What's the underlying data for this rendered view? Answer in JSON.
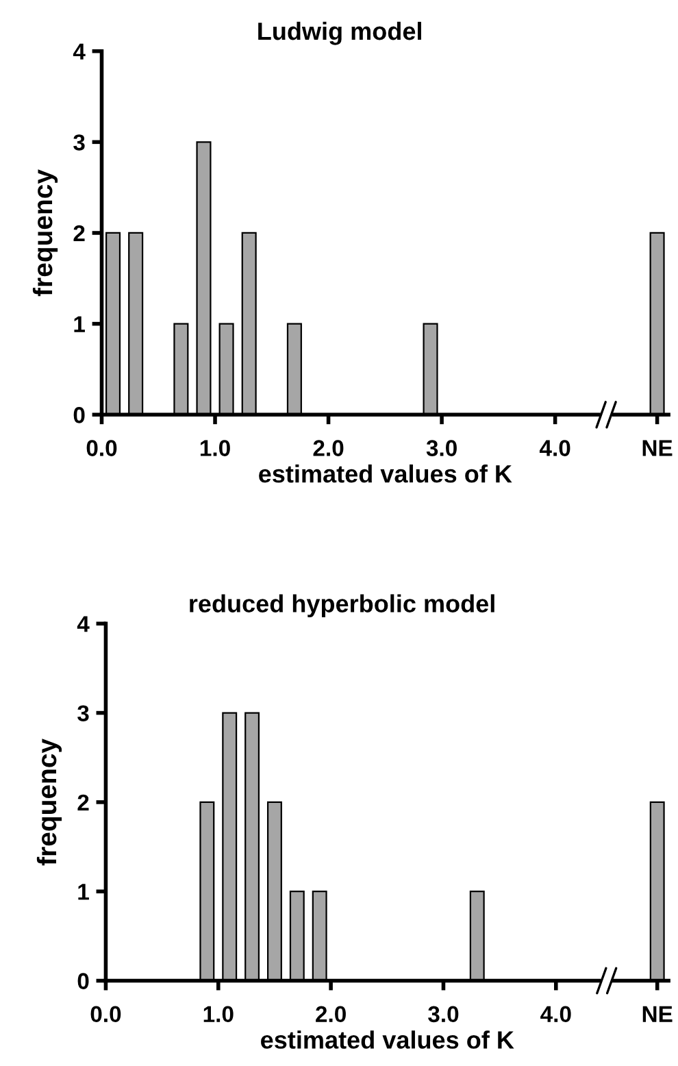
{
  "chart_data": [
    {
      "type": "bar",
      "title": "Ludwig model",
      "xlabel": "estimated values of K",
      "ylabel": "frequency",
      "color": "#a6a6a6",
      "x": [
        0.1,
        0.3,
        0.7,
        0.9,
        1.1,
        1.3,
        1.7,
        2.9,
        4.9
      ],
      "values": [
        2,
        2,
        1,
        3,
        1,
        2,
        1,
        1,
        2
      ],
      "xlim": [
        0,
        5.0
      ],
      "xticks": [
        {
          "value": 0,
          "label": "0.0"
        },
        {
          "value": 1,
          "label": "1.0"
        },
        {
          "value": 2,
          "label": "2.0"
        },
        {
          "value": 3,
          "label": "3.0"
        },
        {
          "value": 4,
          "label": "4.0"
        },
        {
          "value": 4.9,
          "label": "NE"
        }
      ],
      "ylim": [
        0,
        4
      ],
      "yticks": [
        0,
        1,
        2,
        3,
        4
      ],
      "grid": false,
      "legend": false
    },
    {
      "type": "bar",
      "title": "reduced hyperbolic model",
      "xlabel": "estimated values of K",
      "ylabel": "frequency",
      "color": "#a6a6a6",
      "x": [
        0.9,
        1.1,
        1.3,
        1.5,
        1.7,
        1.9,
        3.3,
        4.9
      ],
      "values": [
        2,
        3,
        3,
        2,
        1,
        1,
        1,
        2
      ],
      "xlim": [
        0,
        5.0
      ],
      "xticks": [
        {
          "value": 0,
          "label": "0.0"
        },
        {
          "value": 1,
          "label": "1.0"
        },
        {
          "value": 2,
          "label": "2.0"
        },
        {
          "value": 3,
          "label": "3.0"
        },
        {
          "value": 4,
          "label": "4.0"
        },
        {
          "value": 4.9,
          "label": "NE"
        }
      ],
      "ylim": [
        0,
        4
      ],
      "yticks": [
        0,
        1,
        2,
        3,
        4
      ],
      "grid": false,
      "legend": false
    }
  ]
}
